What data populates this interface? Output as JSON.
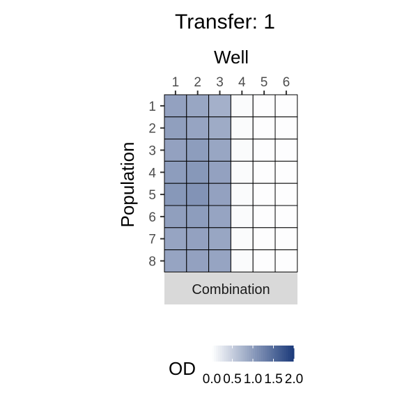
{
  "chart_data": {
    "type": "heatmap",
    "title": "Transfer: 1",
    "xlabel": "Well",
    "ylabel": "Population",
    "x_categories": [
      "1",
      "2",
      "3",
      "4",
      "5",
      "6"
    ],
    "y_categories": [
      "1",
      "2",
      "3",
      "4",
      "5",
      "6",
      "7",
      "8"
    ],
    "facet_label": "Combination",
    "values": [
      [
        0.95,
        0.9,
        0.8,
        0.04,
        0.02,
        0.02
      ],
      [
        0.97,
        0.92,
        0.85,
        0.04,
        0.02,
        0.02
      ],
      [
        0.95,
        1.0,
        0.9,
        0.04,
        0.02,
        0.02
      ],
      [
        1.0,
        1.05,
        0.95,
        0.04,
        0.02,
        0.02
      ],
      [
        1.05,
        1.1,
        0.95,
        0.04,
        0.02,
        0.02
      ],
      [
        0.97,
        1.0,
        0.92,
        0.04,
        0.02,
        0.02
      ],
      [
        0.92,
        0.95,
        0.9,
        0.04,
        0.02,
        0.02
      ],
      [
        0.92,
        0.95,
        0.92,
        0.04,
        0.02,
        0.02
      ]
    ],
    "legend": {
      "title": "OD",
      "min": 0.0,
      "max": 2.0,
      "ticks": [
        "0.0",
        "0.5",
        "1.0",
        "1.5",
        "2.0"
      ],
      "low_color": "#ffffff",
      "high_color": "#1b3a7a"
    },
    "grid": false
  }
}
